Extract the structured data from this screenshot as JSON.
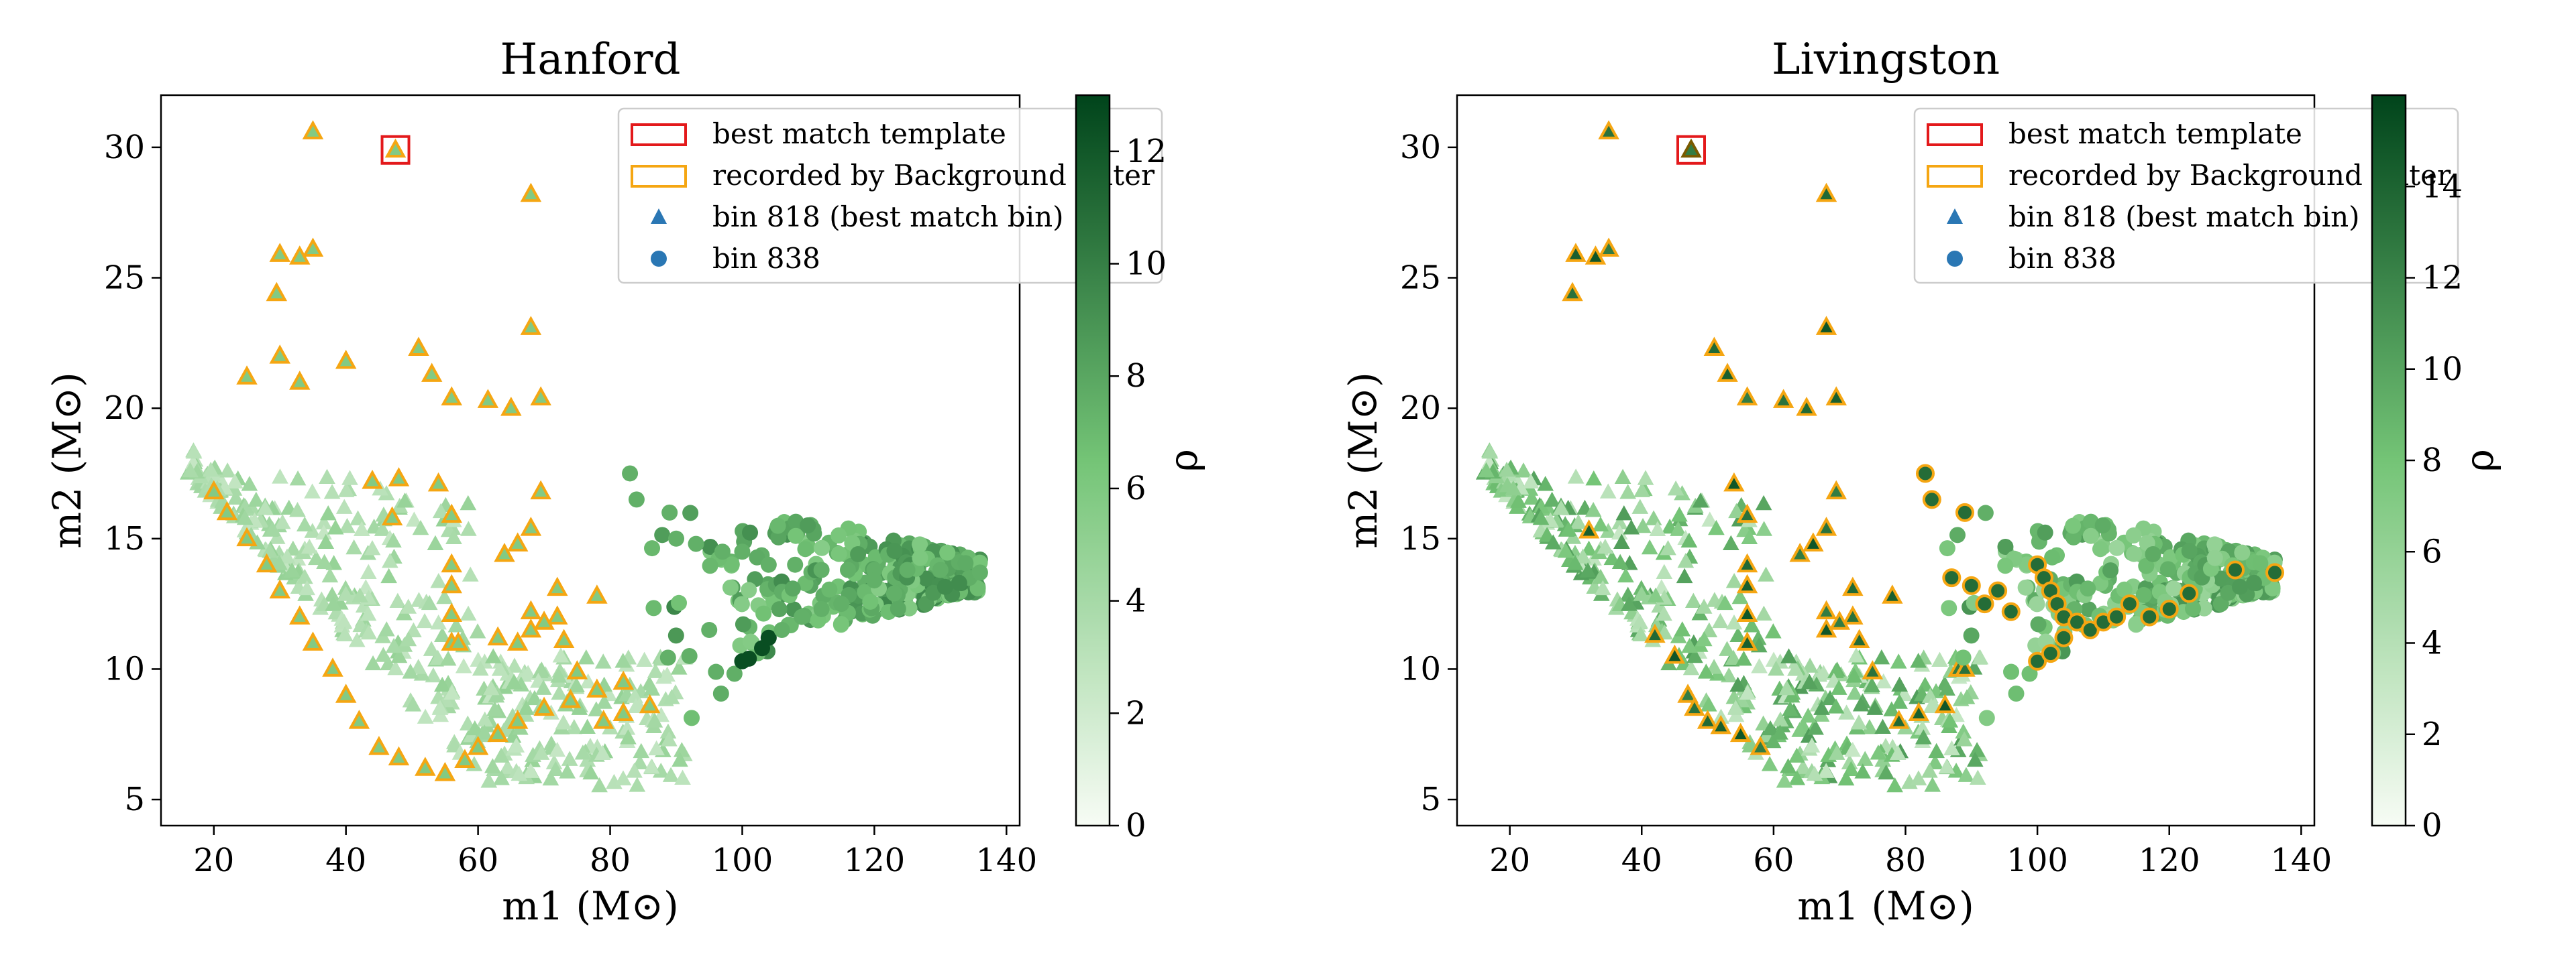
{
  "colors": {
    "best_match_box": "#e3191b",
    "background_filter_edge": "#f5a612",
    "legend_marker": "#2a77b4",
    "cmap_low": "#f7fcf5",
    "cmap_mid": "#74c476",
    "cmap_high": "#00441b"
  },
  "chart_data": [
    {
      "type": "scatter",
      "title": "Hanford",
      "xlabel": "m1 (M⊙)",
      "ylabel": "m2 (M⊙)",
      "colorbar_label": "ρ",
      "xlim": [
        12,
        142
      ],
      "ylim": [
        4,
        32
      ],
      "xticks": [
        "20",
        "40",
        "60",
        "80",
        "100",
        "120",
        "140"
      ],
      "yticks": [
        "5",
        "10",
        "15",
        "20",
        "25",
        "30"
      ],
      "colorbar_range": [
        0,
        13
      ],
      "colorbar_ticks": [
        "0",
        "2",
        "4",
        "6",
        "8",
        "10",
        "12"
      ],
      "legend": [
        "best match template",
        "recorded by Background Filter",
        "bin 818 (best match bin)",
        "bin 838"
      ],
      "best_match_template": {
        "m1": 47.5,
        "m2": 29.9
      },
      "recorded_bins": [
        "818"
      ],
      "series": [
        {
          "name": "bin 818 (best match bin)",
          "marker": "triangle",
          "rho_range": [
            2.5,
            6.5
          ],
          "points": [
            [
              47.5,
              29.9
            ],
            [
              35,
              30.6
            ],
            [
              68,
              28.2
            ],
            [
              30,
              25.9
            ],
            [
              33,
              25.8
            ],
            [
              35,
              26.1
            ],
            [
              29.5,
              24.4
            ],
            [
              51,
              22.3
            ],
            [
              53,
              21.3
            ],
            [
              68,
              23.1
            ],
            [
              56,
              20.4
            ],
            [
              61.5,
              20.3
            ],
            [
              65,
              20.0
            ],
            [
              69.5,
              20.4
            ],
            [
              44,
              17.2
            ],
            [
              48,
              17.3
            ],
            [
              54,
              17.1
            ],
            [
              69.5,
              16.8
            ],
            [
              56,
              15.9
            ],
            [
              47,
              15.8
            ],
            [
              56,
              14.0
            ],
            [
              56,
              13.2
            ],
            [
              66,
              14.8
            ],
            [
              64,
              14.4
            ],
            [
              68,
              15.4
            ],
            [
              72,
              13.1
            ],
            [
              78,
              12.8
            ],
            [
              56,
              12.1
            ],
            [
              68,
              12.2
            ],
            [
              72,
              12.0
            ],
            [
              73,
              11.1
            ],
            [
              56,
              11.0
            ],
            [
              57,
              11.0
            ],
            [
              63,
              11.2
            ],
            [
              66,
              11.0
            ],
            [
              68,
              11.5
            ],
            [
              70,
              11.8
            ],
            [
              75,
              9.9
            ],
            [
              79,
              8.0
            ],
            [
              82,
              8.3
            ],
            [
              86,
              8.6
            ],
            [
              30,
              22.0
            ],
            [
              33,
              21.0
            ],
            [
              25,
              21.2
            ],
            [
              40,
              21.8
            ],
            [
              20,
              16.8
            ],
            [
              22,
              16.0
            ],
            [
              25,
              15.0
            ],
            [
              28,
              14.0
            ],
            [
              30,
              13.0
            ],
            [
              33,
              12.0
            ],
            [
              35,
              11.0
            ],
            [
              38,
              10.0
            ],
            [
              40,
              9.0
            ],
            [
              42,
              8.0
            ],
            [
              45,
              7.0
            ],
            [
              48,
              6.6
            ],
            [
              52,
              6.2
            ],
            [
              55,
              6.0
            ],
            [
              58,
              6.5
            ],
            [
              60,
              7.0
            ],
            [
              63,
              7.5
            ],
            [
              66,
              8.0
            ],
            [
              70,
              8.5
            ],
            [
              74,
              8.8
            ],
            [
              78,
              9.2
            ],
            [
              82,
              9.5
            ]
          ],
          "cloud": {
            "m1_range": [
              16,
              92
            ],
            "m2_range": [
              5.5,
              18.5
            ],
            "count": 420
          }
        },
        {
          "name": "bin 838",
          "marker": "circle",
          "rho_range": [
            5.5,
            13
          ],
          "points": [
            [
              83,
              17.5
            ],
            [
              84,
              16.5
            ],
            [
              89,
              16.0
            ],
            [
              90,
              15.0
            ],
            [
              93,
              14.8
            ],
            [
              97,
              14.5
            ],
            [
              100,
              14.5
            ],
            [
              104,
              14.0
            ],
            [
              108,
              14.0
            ],
            [
              112,
              13.8
            ],
            [
              116,
              13.8
            ],
            [
              120,
              13.8
            ],
            [
              125,
              13.8
            ],
            [
              130,
              13.8
            ],
            [
              136,
              13.7
            ],
            [
              100,
              10.3
            ],
            [
              101,
              10.4
            ],
            [
              103,
              10.8
            ],
            [
              104,
              11.2
            ],
            [
              106,
              11.5
            ],
            [
              109,
              12.0
            ],
            [
              112,
              12.3
            ],
            [
              115,
              12.5
            ],
            [
              120,
              13.4
            ],
            [
              123,
              12.9
            ],
            [
              95,
              11.5
            ],
            [
              92,
              10.5
            ]
          ],
          "cloud": {
            "m1_range": [
              85,
              136
            ],
            "m2_range": [
              10,
              17
            ],
            "count": 320
          }
        }
      ]
    },
    {
      "type": "scatter",
      "title": "Livingston",
      "xlabel": "m1 (M⊙)",
      "ylabel": "m2 (M⊙)",
      "colorbar_label": "ρ",
      "xlim": [
        12,
        142
      ],
      "ylim": [
        4,
        32
      ],
      "xticks": [
        "20",
        "40",
        "60",
        "80",
        "100",
        "120",
        "140"
      ],
      "yticks": [
        "5",
        "10",
        "15",
        "20",
        "25",
        "30"
      ],
      "colorbar_range": [
        0,
        16
      ],
      "colorbar_ticks": [
        "0",
        "2",
        "4",
        "6",
        "8",
        "10",
        "12",
        "14"
      ],
      "legend": [
        "best match template",
        "recorded by Background Filter",
        "bin 818 (best match bin)",
        "bin 838"
      ],
      "best_match_template": {
        "m1": 47.5,
        "m2": 29.9
      },
      "recorded_bins": [
        "818",
        "838"
      ],
      "series": [
        {
          "name": "bin 818 (best match bin)",
          "marker": "triangle",
          "rho_range": [
            3,
            15.5
          ],
          "points": [
            [
              47.5,
              29.9
            ],
            [
              35,
              30.6
            ],
            [
              68,
              28.2
            ],
            [
              30,
              25.9
            ],
            [
              33,
              25.8
            ],
            [
              35,
              26.1
            ],
            [
              29.5,
              24.4
            ],
            [
              51,
              22.3
            ],
            [
              53,
              21.3
            ],
            [
              68,
              23.1
            ],
            [
              56,
              20.4
            ],
            [
              61.5,
              20.3
            ],
            [
              65,
              20.0
            ],
            [
              69.5,
              20.4
            ],
            [
              54,
              17.1
            ],
            [
              69.5,
              16.8
            ],
            [
              56,
              15.9
            ],
            [
              56,
              14.0
            ],
            [
              56,
              13.2
            ],
            [
              66,
              14.8
            ],
            [
              64,
              14.4
            ],
            [
              68,
              15.4
            ],
            [
              72,
              13.1
            ],
            [
              78,
              12.8
            ],
            [
              56,
              12.1
            ],
            [
              68,
              12.2
            ],
            [
              72,
              12.0
            ],
            [
              73,
              11.1
            ],
            [
              56,
              11.0
            ],
            [
              68,
              11.5
            ],
            [
              70,
              11.8
            ],
            [
              75,
              9.9
            ],
            [
              79,
              8.0
            ],
            [
              82,
              8.3
            ],
            [
              86,
              8.6
            ],
            [
              88,
              10
            ],
            [
              89,
              10
            ],
            [
              42,
              11.3
            ],
            [
              32,
              15.3
            ],
            [
              45,
              10.5
            ],
            [
              47,
              9.0
            ],
            [
              48,
              8.5
            ],
            [
              50,
              8.0
            ],
            [
              52,
              7.8
            ],
            [
              55,
              7.5
            ],
            [
              58,
              7.0
            ]
          ],
          "cloud": {
            "m1_range": [
              16,
              92
            ],
            "m2_range": [
              5.5,
              18.5
            ],
            "count": 420
          }
        },
        {
          "name": "bin 838",
          "marker": "circle",
          "rho_range": [
            5.5,
            15.5
          ],
          "points": [
            [
              83,
              17.5
            ],
            [
              84,
              16.5
            ],
            [
              89,
              16.0
            ],
            [
              87,
              13.5
            ],
            [
              90,
              13.2
            ],
            [
              92,
              12.5
            ],
            [
              94,
              13.0
            ],
            [
              96,
              12.2
            ],
            [
              100,
              14.0
            ],
            [
              101,
              13.5
            ],
            [
              102,
              13.0
            ],
            [
              103,
              12.5
            ],
            [
              104,
              12.0
            ],
            [
              106,
              11.8
            ],
            [
              108,
              11.5
            ],
            [
              110,
              11.8
            ],
            [
              112,
              12.0
            ],
            [
              114,
              12.5
            ],
            [
              117,
              12.0
            ],
            [
              120,
              12.3
            ],
            [
              123,
              12.9
            ],
            [
              100,
              10.3
            ],
            [
              102,
              10.6
            ],
            [
              104,
              11.2
            ],
            [
              130,
              13.8
            ],
            [
              136,
              13.7
            ]
          ],
          "cloud": {
            "m1_range": [
              85,
              136
            ],
            "m2_range": [
              10,
              17
            ],
            "count": 320
          }
        }
      ]
    }
  ]
}
